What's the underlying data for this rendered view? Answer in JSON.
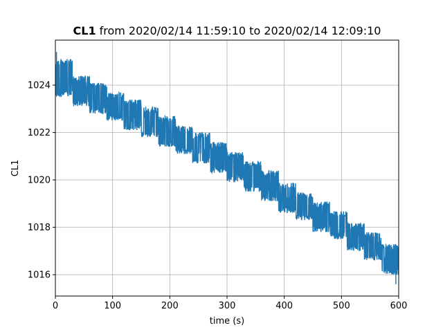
{
  "chart_data": {
    "type": "line",
    "title_channel": "CL1",
    "title_rest": "from 2020/02/14 11:59:10 to 2020/02/14 12:09:10",
    "xlabel": "time (s)",
    "ylabel": "CL1",
    "xlim": [
      0,
      600
    ],
    "ylim": [
      1015.1,
      1025.9
    ],
    "xticks": [
      0,
      100,
      200,
      300,
      400,
      500,
      600
    ],
    "yticks": [
      1016,
      1018,
      1020,
      1022,
      1024
    ],
    "grid": true,
    "series_color": "#1f77b4",
    "trend": {
      "x": [
        0,
        600
      ],
      "y": [
        1024.3,
        1016.3
      ]
    },
    "noise_band_halfwidth": 0.8,
    "segments": [
      {
        "x0": 0,
        "x1": 30,
        "low": 1023.5,
        "high": 1025.1
      },
      {
        "x0": 30,
        "x1": 60,
        "low": 1023.1,
        "high": 1024.4
      },
      {
        "x0": 60,
        "x1": 90,
        "low": 1022.8,
        "high": 1024.1
      },
      {
        "x0": 90,
        "x1": 120,
        "low": 1022.5,
        "high": 1023.7
      },
      {
        "x0": 120,
        "x1": 150,
        "low": 1022.1,
        "high": 1023.4
      },
      {
        "x0": 150,
        "x1": 180,
        "low": 1021.8,
        "high": 1023.1
      },
      {
        "x0": 180,
        "x1": 210,
        "low": 1021.4,
        "high": 1022.7
      },
      {
        "x0": 210,
        "x1": 240,
        "low": 1021.1,
        "high": 1022.3
      },
      {
        "x0": 240,
        "x1": 270,
        "low": 1020.7,
        "high": 1022.0
      },
      {
        "x0": 270,
        "x1": 300,
        "low": 1020.3,
        "high": 1021.6
      },
      {
        "x0": 300,
        "x1": 330,
        "low": 1019.9,
        "high": 1021.2
      },
      {
        "x0": 330,
        "x1": 360,
        "low": 1019.5,
        "high": 1020.8
      },
      {
        "x0": 360,
        "x1": 390,
        "low": 1019.1,
        "high": 1020.4
      },
      {
        "x0": 390,
        "x1": 420,
        "low": 1018.6,
        "high": 1019.9
      },
      {
        "x0": 420,
        "x1": 450,
        "low": 1018.3,
        "high": 1019.5
      },
      {
        "x0": 450,
        "x1": 480,
        "low": 1017.8,
        "high": 1019.1
      },
      {
        "x0": 480,
        "x1": 510,
        "low": 1017.5,
        "high": 1018.7
      },
      {
        "x0": 510,
        "x1": 540,
        "low": 1017.0,
        "high": 1018.2
      },
      {
        "x0": 540,
        "x1": 570,
        "low": 1016.6,
        "high": 1017.8
      },
      {
        "x0": 570,
        "x1": 600,
        "low": 1016.0,
        "high": 1017.3
      }
    ],
    "extremes": {
      "max": 1025.4,
      "min": 1015.6
    }
  }
}
